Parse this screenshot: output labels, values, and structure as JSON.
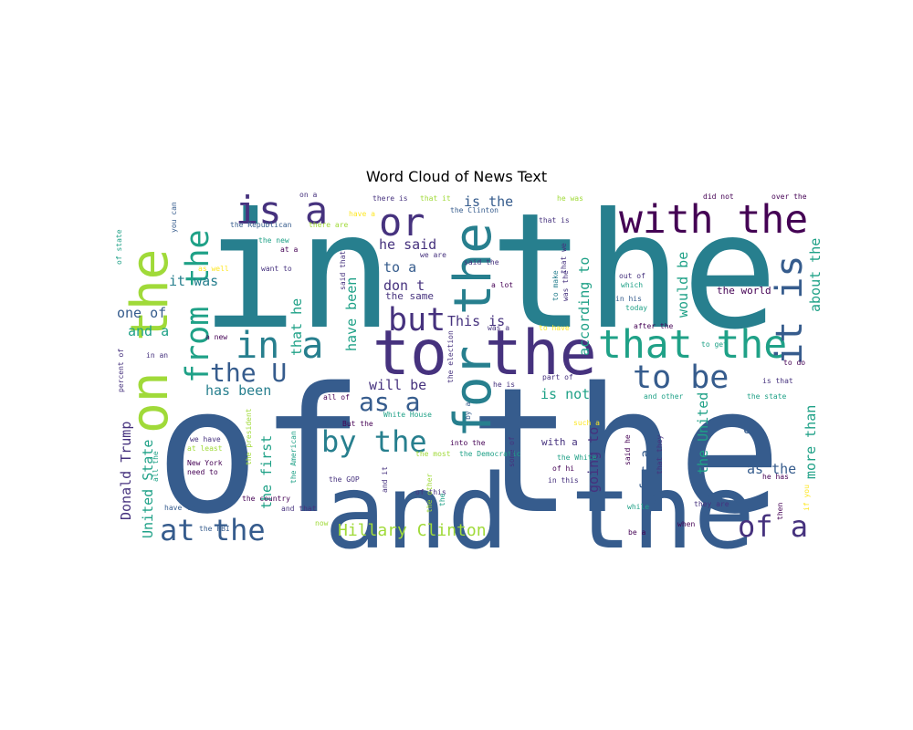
{
  "title": "Word Cloud of News Text",
  "palette": [
    "#440154",
    "#46327e",
    "#365c8d",
    "#277f8e",
    "#1fa187",
    "#4ac16d",
    "#a0da39",
    "#fde725"
  ],
  "chart_data": {
    "type": "wordcloud",
    "title": "Word Cloud of News Text",
    "colormap": "viridis",
    "background": "#ffffff",
    "words": [
      {
        "text": "of the",
        "weight": 100
      },
      {
        "text": "in the",
        "weight": 92
      },
      {
        "text": "and the",
        "weight": 62
      },
      {
        "text": "to the",
        "weight": 42
      },
      {
        "text": "for the",
        "weight": 36
      },
      {
        "text": "on the",
        "weight": 34
      },
      {
        "text": "with the",
        "weight": 30
      },
      {
        "text": "that the",
        "weight": 29
      },
      {
        "text": "or",
        "weight": 28
      },
      {
        "text": "it is",
        "weight": 27
      },
      {
        "text": "is a",
        "weight": 26
      },
      {
        "text": "in a",
        "weight": 26
      },
      {
        "text": "from the",
        "weight": 24
      },
      {
        "text": "to be",
        "weight": 24
      },
      {
        "text": "but",
        "weight": 22
      },
      {
        "text": "by the",
        "weight": 22
      },
      {
        "text": "at the",
        "weight": 22
      },
      {
        "text": "of a",
        "weight": 22
      },
      {
        "text": "as a",
        "weight": 20
      },
      {
        "text": "the U",
        "weight": 20
      },
      {
        "text": "Hillary Clinton",
        "weight": 14
      },
      {
        "text": "Donald Trump",
        "weight": 12
      },
      {
        "text": "United State",
        "weight": 12
      },
      {
        "text": "is the",
        "weight": 11
      },
      {
        "text": "he said",
        "weight": 11
      },
      {
        "text": "it was",
        "weight": 11
      },
      {
        "text": "one of",
        "weight": 11
      },
      {
        "text": "and a",
        "weight": 11
      },
      {
        "text": "has been",
        "weight": 11
      },
      {
        "text": "will be",
        "weight": 11
      },
      {
        "text": "is not",
        "weight": 11
      },
      {
        "text": "This is",
        "weight": 11
      },
      {
        "text": "to a",
        "weight": 11
      },
      {
        "text": "don t",
        "weight": 11
      },
      {
        "text": "about the",
        "weight": 11
      },
      {
        "text": "more than",
        "weight": 11
      },
      {
        "text": "would be",
        "weight": 11
      },
      {
        "text": "according to",
        "weight": 11
      },
      {
        "text": "going to",
        "weight": 11
      },
      {
        "text": "the United",
        "weight": 11
      },
      {
        "text": "as the",
        "weight": 11
      },
      {
        "text": "the first",
        "weight": 11
      },
      {
        "text": "have been",
        "weight": 11
      },
      {
        "text": "that he",
        "weight": 11
      },
      {
        "text": "for a",
        "weight": 11
      },
      {
        "text": "U",
        "weight": 11
      },
      {
        "text": "with a",
        "weight": 8
      },
      {
        "text": "the same",
        "weight": 7
      },
      {
        "text": "the world",
        "weight": 7
      },
      {
        "text": "on a",
        "weight": 5
      },
      {
        "text": "there is",
        "weight": 5
      },
      {
        "text": "that it",
        "weight": 5
      },
      {
        "text": "he was",
        "weight": 5
      },
      {
        "text": "did not",
        "weight": 5
      },
      {
        "text": "over the",
        "weight": 5
      },
      {
        "text": "have a",
        "weight": 5
      },
      {
        "text": "the Clinton",
        "weight": 5
      },
      {
        "text": "that is",
        "weight": 5
      },
      {
        "text": "the Republican",
        "weight": 5
      },
      {
        "text": "there are",
        "weight": 5
      },
      {
        "text": "the new",
        "weight": 5
      },
      {
        "text": "at a",
        "weight": 5
      },
      {
        "text": "we are",
        "weight": 5
      },
      {
        "text": "said the",
        "weight": 5
      },
      {
        "text": "as well",
        "weight": 5
      },
      {
        "text": "want to",
        "weight": 5
      },
      {
        "text": "a lot",
        "weight": 5
      },
      {
        "text": "out of",
        "weight": 5
      },
      {
        "text": "which",
        "weight": 5
      },
      {
        "text": "in his",
        "weight": 5
      },
      {
        "text": "today",
        "weight": 5
      },
      {
        "text": "after the",
        "weight": 5
      },
      {
        "text": "to get",
        "weight": 5
      },
      {
        "text": "to do",
        "weight": 5
      },
      {
        "text": "is that",
        "weight": 5
      },
      {
        "text": "the state",
        "weight": 5
      },
      {
        "text": "and other",
        "weight": 5
      },
      {
        "text": "in an",
        "weight": 5
      },
      {
        "text": "a new",
        "weight": 5
      },
      {
        "text": "was a",
        "weight": 5
      },
      {
        "text": "to have",
        "weight": 5
      },
      {
        "text": "part of",
        "weight": 5
      },
      {
        "text": "he is",
        "weight": 5
      },
      {
        "text": "all of",
        "weight": 5
      },
      {
        "text": "White House",
        "weight": 5
      },
      {
        "text": "But the",
        "weight": 5
      },
      {
        "text": "such a",
        "weight": 5
      },
      {
        "text": "we have",
        "weight": 5
      },
      {
        "text": "at least",
        "weight": 5
      },
      {
        "text": "into the",
        "weight": 5
      },
      {
        "text": "the most",
        "weight": 5
      },
      {
        "text": "the Democratic",
        "weight": 5
      },
      {
        "text": "the White",
        "weight": 5
      },
      {
        "text": "of hi",
        "weight": 5
      },
      {
        "text": "in this",
        "weight": 5
      },
      {
        "text": "he has",
        "weight": 5
      },
      {
        "text": "New York",
        "weight": 5
      },
      {
        "text": "need to",
        "weight": 5
      },
      {
        "text": "the GOP",
        "weight": 5
      },
      {
        "text": "of this",
        "weight": 5
      },
      {
        "text": "the country",
        "weight": 5
      },
      {
        "text": "have to",
        "weight": 5
      },
      {
        "text": "and that",
        "weight": 5
      },
      {
        "text": "while",
        "weight": 5
      },
      {
        "text": "they are",
        "weight": 5
      },
      {
        "text": "the FBI",
        "weight": 5
      },
      {
        "text": "now",
        "weight": 5
      },
      {
        "text": "be a",
        "weight": 5
      },
      {
        "text": "when",
        "weight": 5
      },
      {
        "text": "then",
        "weight": 5
      },
      {
        "text": "if you",
        "weight": 5
      },
      {
        "text": "you can",
        "weight": 5
      },
      {
        "text": "of state",
        "weight": 5
      },
      {
        "text": "percent of",
        "weight": 5
      },
      {
        "text": "said that",
        "weight": 5
      },
      {
        "text": "the election",
        "weight": 5
      },
      {
        "text": "that we",
        "weight": 5
      },
      {
        "text": "to make",
        "weight": 5
      },
      {
        "text": "was the",
        "weight": 5
      },
      {
        "text": "by a",
        "weight": 5
      },
      {
        "text": "said he",
        "weight": 5
      },
      {
        "text": "that they",
        "weight": 5
      },
      {
        "text": "the president",
        "weight": 5
      },
      {
        "text": "the American",
        "weight": 5
      },
      {
        "text": "and it",
        "weight": 5
      },
      {
        "text": "the other",
        "weight": 5
      },
      {
        "text": "some of",
        "weight": 5
      },
      {
        "text": "all the",
        "weight": 5
      },
      {
        "text": "the",
        "weight": 5
      }
    ]
  }
}
